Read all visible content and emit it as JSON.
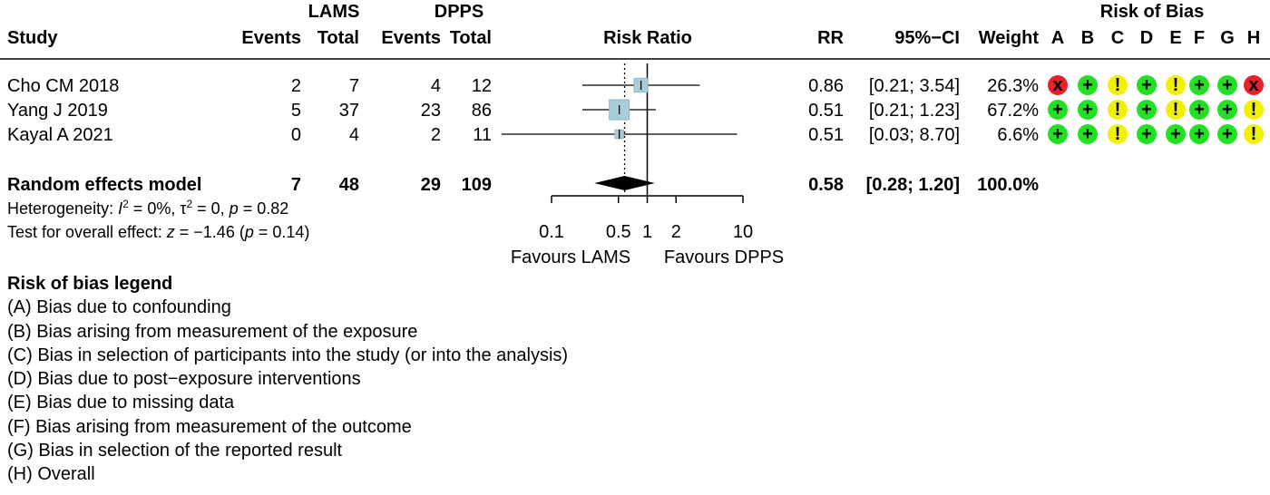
{
  "chart_data": {
    "type": "forest",
    "headers": {
      "lams": "LAMS",
      "dpps": "DPPS",
      "risk_of_bias": "Risk of Bias",
      "study": "Study",
      "events": "Events",
      "total": "Total",
      "risk_ratio": "Risk Ratio",
      "rr": "RR",
      "ci": "95%−CI",
      "weight": "Weight",
      "domains": [
        "A",
        "B",
        "C",
        "D",
        "E",
        "F",
        "G",
        "H"
      ]
    },
    "studies": [
      {
        "name": "Cho CM 2018",
        "lams_events": "2",
        "lams_total": "7",
        "dpps_events": "4",
        "dpps_total": "12",
        "rr": 0.86,
        "lower": 0.21,
        "upper": 3.54,
        "rr_text": "0.86",
        "ci_text": "[0.21; 3.54]",
        "weight_text": "26.3%",
        "weight": 26.3,
        "bias": [
          "high",
          "low",
          "some",
          "low",
          "some",
          "low",
          "low",
          "high"
        ]
      },
      {
        "name": "Yang J 2019",
        "lams_events": "5",
        "lams_total": "37",
        "dpps_events": "23",
        "dpps_total": "86",
        "rr": 0.51,
        "lower": 0.21,
        "upper": 1.23,
        "rr_text": "0.51",
        "ci_text": "[0.21; 1.23]",
        "weight_text": "67.2%",
        "weight": 67.2,
        "bias": [
          "low",
          "low",
          "some",
          "low",
          "some",
          "low",
          "low",
          "some"
        ]
      },
      {
        "name": "Kayal A 2021",
        "lams_events": "0",
        "lams_total": "4",
        "dpps_events": "2",
        "dpps_total": "11",
        "rr": 0.51,
        "lower": 0.03,
        "upper": 8.7,
        "rr_text": "0.51",
        "ci_text": "[0.03; 8.70]",
        "weight_text": "6.6%",
        "weight": 6.6,
        "bias": [
          "low",
          "low",
          "some",
          "low",
          "low",
          "low",
          "low",
          "some"
        ]
      }
    ],
    "pooled": {
      "name": "Random effects model",
      "lams_events": "7",
      "lams_total": "48",
      "dpps_events": "29",
      "dpps_total": "109",
      "rr": 0.58,
      "lower": 0.28,
      "upper": 1.2,
      "rr_text": "0.58",
      "ci_text": "[0.28; 1.20]",
      "weight_text": "100.0%"
    },
    "x_axis": {
      "scale": "log",
      "ticks": [
        0.1,
        0.5,
        1,
        2,
        10
      ],
      "tick_labels": [
        "0.1",
        "0.5",
        "1",
        "2",
        "10"
      ],
      "xlim": [
        0.1,
        10
      ],
      "null_line": 1,
      "left_label": "Favours LAMS",
      "right_label": "Favours DPPS"
    },
    "heterogeneity": {
      "label": "Heterogeneity:",
      "i2": "0%",
      "tau2": "0",
      "p": "0.82"
    },
    "overall_effect": {
      "label": "Test for overall effect:",
      "z": "−1.46",
      "p": "0.14"
    },
    "bias_symbols": {
      "low": "+",
      "some": "!",
      "high": "x"
    },
    "colors": {
      "low": "#22e022",
      "some": "#f2f200",
      "high": "#e8202a",
      "box": "#a6cdd9",
      "box_border": "#8fb6c4"
    }
  },
  "legend": {
    "title": "Risk of bias legend",
    "items": [
      "(A) Bias due to confounding",
      "(B) Bias arising from measurement of the exposure",
      "(C) Bias in selection of participants into the study (or into the analysis)",
      "(D) Bias due to post−exposure interventions",
      "(E) Bias due to missing data",
      "(F) Bias arising from measurement of the outcome",
      "(G) Bias in selection of the reported result",
      "(H) Overall"
    ]
  }
}
